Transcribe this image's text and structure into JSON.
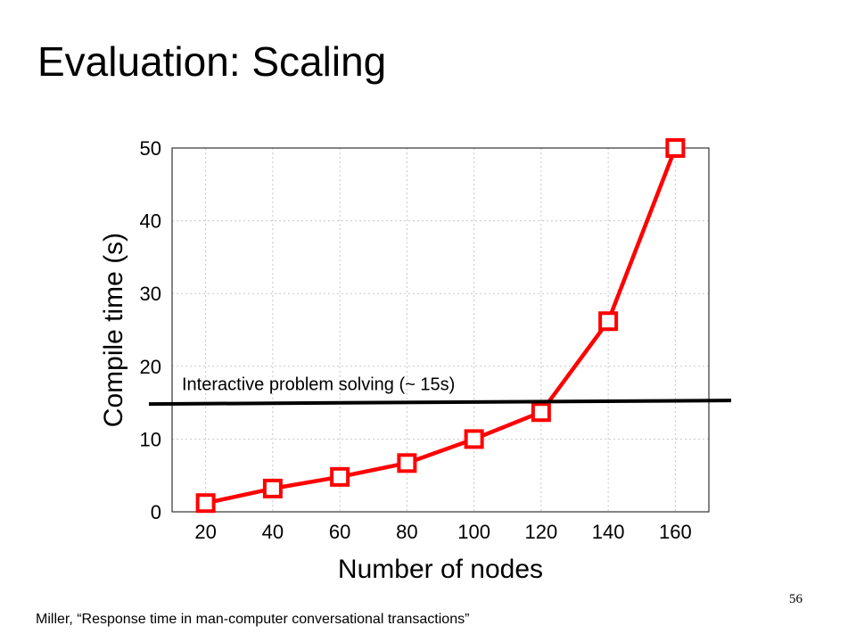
{
  "slide": {
    "title": "Evaluation: Scaling",
    "page_number": "56",
    "citation": "Miller, “Response time in man-computer conversational transactions”"
  },
  "chart_data": {
    "type": "line",
    "x": [
      20,
      40,
      60,
      80,
      100,
      120,
      140,
      160
    ],
    "series": [
      {
        "values": [
          1.2,
          3.2,
          4.8,
          6.7,
          10.0,
          13.7,
          26.2,
          50.0
        ],
        "color": "#ff0000",
        "marker": "square"
      }
    ],
    "xlabel": "Number of nodes",
    "ylabel": "Compile time (s)",
    "x_ticks": [
      20,
      40,
      60,
      80,
      100,
      120,
      140,
      160
    ],
    "y_ticks": [
      0,
      10,
      20,
      30,
      40,
      50
    ],
    "xlim": [
      10,
      170
    ],
    "ylim": [
      0,
      50
    ],
    "grid": true,
    "annotation": {
      "text": "Interactive problem solving (~ 15s)",
      "y_value": 15,
      "color": "#000000"
    }
  }
}
